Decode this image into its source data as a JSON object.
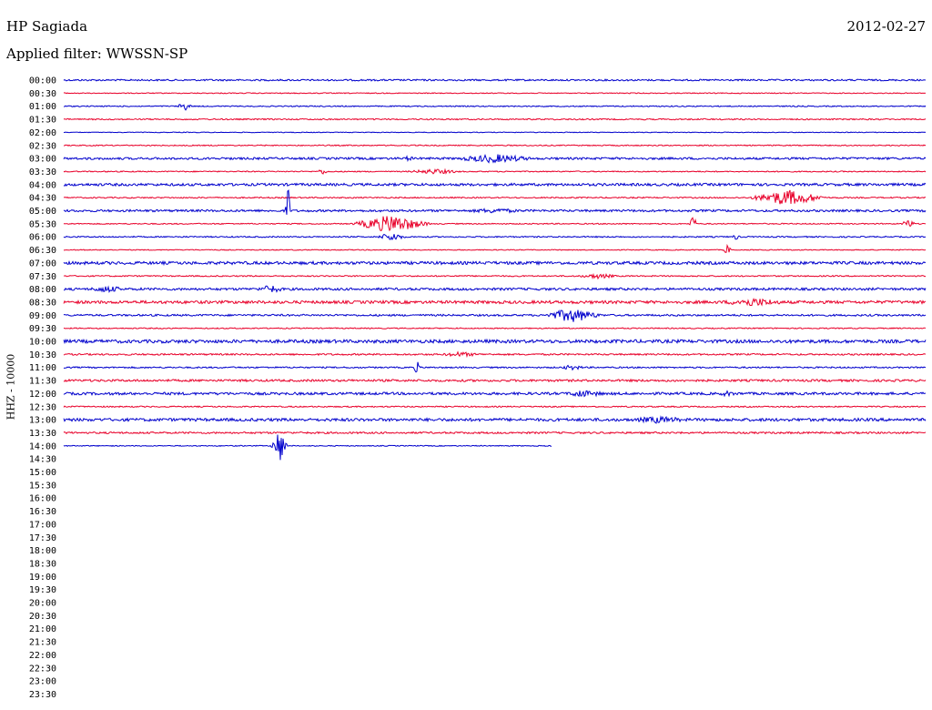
{
  "header": {
    "station": "HP Sagiada",
    "date": "2012-02-27",
    "filter": "Applied filter: WWSSN-SP"
  },
  "axis": {
    "ylabel": "HHZ - 10000"
  },
  "chart_data": {
    "type": "line",
    "title": "HP Sagiada",
    "subtitle": "Applied filter: WWSSN-SP",
    "date": "2012-02-27",
    "ylabel": "HHZ - 10000",
    "row_labels": [
      "00:00",
      "00:30",
      "01:00",
      "01:30",
      "02:00",
      "02:30",
      "03:00",
      "03:30",
      "04:00",
      "04:30",
      "05:00",
      "05:30",
      "06:00",
      "06:30",
      "07:00",
      "07:30",
      "08:00",
      "08:30",
      "09:00",
      "09:30",
      "10:00",
      "10:30",
      "11:00",
      "11:30",
      "12:00",
      "12:30",
      "13:00",
      "13:30",
      "14:00",
      "14:30",
      "15:00",
      "15:30",
      "16:00",
      "16:30",
      "17:00",
      "17:30",
      "18:00",
      "18:30",
      "19:00",
      "19:30",
      "20:00",
      "20:30",
      "21:00",
      "21:30",
      "22:00",
      "22:30",
      "23:00",
      "23:30"
    ],
    "row_minutes": 30,
    "trace_colors": [
      "#0000cc",
      "#e8002a"
    ],
    "data_until_row": 28,
    "row_14_00_end_minute": 17,
    "noise_amplitude": [
      0.9,
      0.5,
      0.6,
      0.7,
      0.4,
      0.6,
      1.2,
      0.6,
      1.4,
      0.7,
      1.2,
      0.6,
      0.7,
      0.5,
      1.6,
      0.7,
      1.3,
      1.6,
      1.0,
      0.6,
      1.8,
      0.9,
      0.8,
      1.2,
      1.4,
      0.7,
      1.6,
      1.0,
      0.5
    ],
    "events": [
      {
        "row": 6,
        "pos": 0.4,
        "amp": 3,
        "width": 0.01
      },
      {
        "row": 6,
        "pos": 0.5,
        "amp": 3,
        "width": 0.04
      },
      {
        "row": 6,
        "pos": 0.5,
        "amp": 5,
        "width": 0.06
      },
      {
        "row": 7,
        "pos": 0.3,
        "amp": 3,
        "width": 0.01
      },
      {
        "row": 7,
        "pos": 0.43,
        "amp": 3,
        "width": 0.04
      },
      {
        "row": 2,
        "pos": 0.14,
        "amp": 5,
        "width": 0.01
      },
      {
        "row": 9,
        "pos": 0.84,
        "amp": 9,
        "width": 0.05
      },
      {
        "row": 10,
        "pos": 0.26,
        "amp": 38,
        "width": 0.003
      },
      {
        "row": 10,
        "pos": 0.5,
        "amp": 3,
        "width": 0.05
      },
      {
        "row": 11,
        "pos": 0.38,
        "amp": 10,
        "width": 0.05
      },
      {
        "row": 11,
        "pos": 0.73,
        "amp": 10,
        "width": 0.005
      },
      {
        "row": 11,
        "pos": 0.98,
        "amp": 5,
        "width": 0.01
      },
      {
        "row": 12,
        "pos": 0.38,
        "amp": 5,
        "width": 0.02
      },
      {
        "row": 12,
        "pos": 0.78,
        "amp": 4,
        "width": 0.005
      },
      {
        "row": 13,
        "pos": 0.77,
        "amp": 6,
        "width": 0.005
      },
      {
        "row": 15,
        "pos": 0.62,
        "amp": 3,
        "width": 0.03
      },
      {
        "row": 16,
        "pos": 0.05,
        "amp": 4,
        "width": 0.03
      },
      {
        "row": 16,
        "pos": 0.24,
        "amp": 5,
        "width": 0.02
      },
      {
        "row": 17,
        "pos": 0.8,
        "amp": 5,
        "width": 0.05
      },
      {
        "row": 18,
        "pos": 0.59,
        "amp": 8,
        "width": 0.04
      },
      {
        "row": 21,
        "pos": 0.46,
        "amp": 3,
        "width": 0.03
      },
      {
        "row": 22,
        "pos": 0.41,
        "amp": 7,
        "width": 0.005
      },
      {
        "row": 22,
        "pos": 0.59,
        "amp": 3,
        "width": 0.02
      },
      {
        "row": 24,
        "pos": 0.6,
        "amp": 5,
        "width": 0.02
      },
      {
        "row": 24,
        "pos": 0.62,
        "amp": 5,
        "width": 0.005
      },
      {
        "row": 24,
        "pos": 0.77,
        "amp": 3,
        "width": 0.02
      },
      {
        "row": 26,
        "pos": 0.69,
        "amp": 4,
        "width": 0.05
      },
      {
        "row": 28,
        "pos": 0.25,
        "amp": 20,
        "width": 0.01
      }
    ]
  }
}
